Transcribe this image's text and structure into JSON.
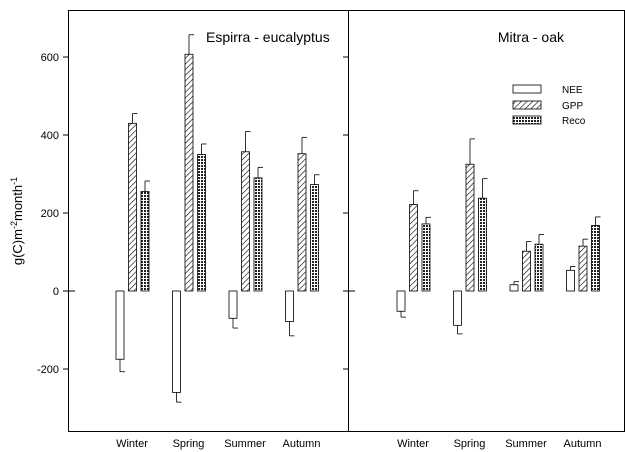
{
  "chart_data": {
    "type": "bar",
    "ylabel": "g(C)m<sup>-2</sup>month<sup>-1</sup>",
    "ylabel_parts": {
      "base1": "g(C)m",
      "sup1": "-2",
      "base2": "month",
      "sup2": "-1"
    },
    "ylim": [
      -360,
      740
    ],
    "yticks": [
      -200,
      0,
      200,
      400,
      600
    ],
    "categories": [
      "Winter",
      "Spring",
      "Summer",
      "Autumn"
    ],
    "legend": {
      "position": "top-right",
      "entries": [
        "NEE",
        "GPP",
        "Reco"
      ]
    },
    "panels": [
      {
        "title": "Espirra - eucalyptus",
        "series": [
          {
            "name": "NEE",
            "values": [
              -175,
              -260,
              -70,
              -78
            ],
            "errors": [
              32,
              25,
              25,
              37
            ]
          },
          {
            "name": "GPP",
            "values": [
              430,
              607,
              357,
              352
            ],
            "errors": [
              25,
              50,
              52,
              42
            ]
          },
          {
            "name": "Reco",
            "values": [
              255,
              350,
              290,
              273
            ],
            "errors": [
              27,
              27,
              27,
              25
            ]
          }
        ]
      },
      {
        "title": "Mitra - oak",
        "series": [
          {
            "name": "NEE",
            "values": [
              -52,
              -88,
              16,
              53
            ],
            "errors": [
              15,
              22,
              8,
              10
            ]
          },
          {
            "name": "GPP",
            "values": [
              222,
              325,
              102,
              115
            ],
            "errors": [
              35,
              65,
              25,
              18
            ]
          },
          {
            "name": "Reco",
            "values": [
              172,
              238,
              120,
              168
            ],
            "errors": [
              17,
              50,
              25,
              22
            ]
          }
        ]
      }
    ]
  }
}
